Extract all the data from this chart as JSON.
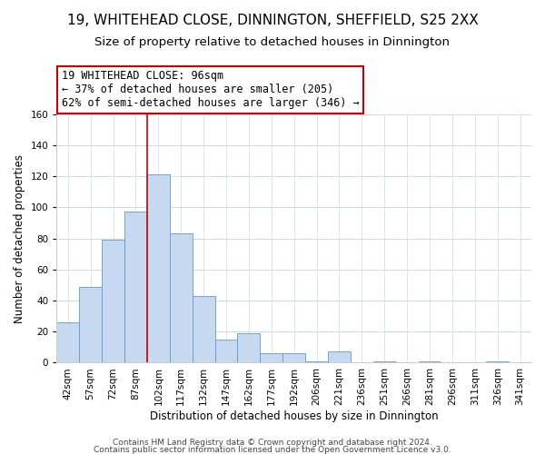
{
  "title": "19, WHITEHEAD CLOSE, DINNINGTON, SHEFFIELD, S25 2XX",
  "subtitle": "Size of property relative to detached houses in Dinnington",
  "xlabel": "Distribution of detached houses by size in Dinnington",
  "ylabel": "Number of detached properties",
  "bin_labels": [
    "42sqm",
    "57sqm",
    "72sqm",
    "87sqm",
    "102sqm",
    "117sqm",
    "132sqm",
    "147sqm",
    "162sqm",
    "177sqm",
    "192sqm",
    "206sqm",
    "221sqm",
    "236sqm",
    "251sqm",
    "266sqm",
    "281sqm",
    "296sqm",
    "311sqm",
    "326sqm",
    "341sqm"
  ],
  "bar_heights": [
    26,
    49,
    79,
    97,
    121,
    83,
    43,
    15,
    19,
    6,
    6,
    1,
    7,
    0,
    1,
    0,
    1,
    0,
    0,
    1,
    0
  ],
  "bar_color": "#c6d9f0",
  "bar_edge_color": "#5b9bd5",
  "highlight_line_color": "#cc0000",
  "ylim": [
    0,
    160
  ],
  "yticks": [
    0,
    20,
    40,
    60,
    80,
    100,
    120,
    140,
    160
  ],
  "annotation_text": "19 WHITEHEAD CLOSE: 96sqm\n← 37% of detached houses are smaller (205)\n62% of semi-detached houses are larger (346) →",
  "annotation_box_color": "#ffffff",
  "annotation_box_edge_color": "#cc0000",
  "footer_line1": "Contains HM Land Registry data © Crown copyright and database right 2024.",
  "footer_line2": "Contains public sector information licensed under the Open Government Licence v3.0.",
  "background_color": "#ffffff",
  "grid_color": "#d0d8e8",
  "title_fontsize": 11,
  "subtitle_fontsize": 9.5,
  "xlabel_fontsize": 8.5,
  "ylabel_fontsize": 8.5,
  "tick_fontsize": 7.5,
  "annotation_fontsize": 8.5,
  "footer_fontsize": 6.5
}
